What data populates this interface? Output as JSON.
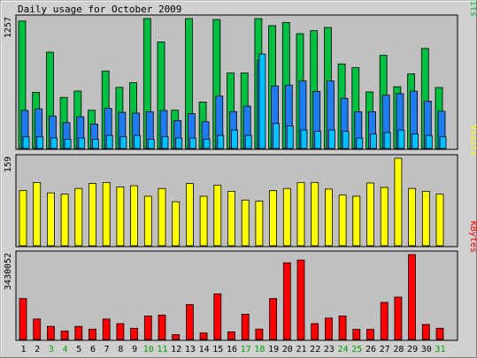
{
  "chart_data": {
    "type": "bar",
    "title": "Daily usage for October 2009",
    "categories": [
      "1",
      "2",
      "3",
      "4",
      "5",
      "6",
      "7",
      "8",
      "9",
      "10",
      "11",
      "12",
      "13",
      "14",
      "15",
      "16",
      "17",
      "18",
      "19",
      "20",
      "21",
      "22",
      "23",
      "24",
      "25",
      "26",
      "27",
      "28",
      "29",
      "30",
      "31"
    ],
    "weekend_days": [
      "3",
      "4",
      "10",
      "11",
      "17",
      "18",
      "24",
      "25",
      "31"
    ],
    "colors": {
      "hits": "#00c040",
      "files": "#1e7cf0",
      "pages": "#00c0ff",
      "visits": "#ffff00",
      "kbytes": "#ff0000",
      "weekday_label": "#000000",
      "weekend_label": "#00a000",
      "panel_bg": "#c0c0c0",
      "frame_bg": "#d0d0d0"
    },
    "panels": [
      {
        "name": "hits-files-pages",
        "ymax_label": "1257",
        "ymax": 1257,
        "legend": [
          {
            "text": "Pages",
            "color": "#00c0ff"
          },
          {
            "text": "/",
            "color": "#000000"
          },
          {
            "text": "Files",
            "color": "#1e7cf0"
          },
          {
            "text": "/",
            "color": "#000000"
          },
          {
            "text": "Hits",
            "color": "#00c040"
          }
        ],
        "series": [
          {
            "name": "Hits",
            "color": "#00c040",
            "values": [
              1233,
              544,
              932,
              494,
              556,
              370,
              750,
              592,
              638,
              1257,
              1031,
              370,
              1257,
              450,
              1248,
              730,
              730,
              1257,
              1188,
              1219,
              1111,
              1140,
              1171,
              818,
              782,
              547,
              901,
              598,
              722,
              968,
              590
            ]
          },
          {
            "name": "Files",
            "color": "#1e7cf0",
            "values": [
              368,
              383,
              314,
              250,
              307,
              236,
              388,
              350,
              343,
              356,
              368,
              270,
              337,
              259,
              508,
              357,
              410,
              854,
              605,
              613,
              653,
              552,
              653,
              485,
              356,
              356,
              516,
              531,
              555,
              458,
              360
            ]
          },
          {
            "name": "Pages",
            "color": "#00c0ff",
            "values": [
              114,
              114,
              102,
              90,
              102,
              90,
              127,
              114,
              127,
              90,
              114,
              102,
              102,
              90,
              127,
              179,
              127,
              914,
              242,
              218,
              179,
              166,
              179,
              166,
              102,
              139,
              154,
              179,
              139,
              127,
              114
            ]
          }
        ]
      },
      {
        "name": "visits",
        "ymax_label": "159",
        "ymax": 159,
        "legend": [
          {
            "text": "Visits",
            "color": "#ffff00"
          }
        ],
        "series": [
          {
            "name": "Visits",
            "color": "#ffff00",
            "values": [
              100,
              115,
              96,
              94,
              104,
              113,
              115,
              107,
              109,
              90,
              104,
              80,
              113,
              90,
              110,
              99,
              83,
              81,
              100,
              104,
              115,
              115,
              103,
              92,
              90,
              114,
              106,
              159,
              104,
              99,
              94
            ]
          }
        ]
      },
      {
        "name": "kbytes",
        "ymax_label": "3430052",
        "ymax": 3430052,
        "legend": [
          {
            "text": "KBytes",
            "color": "#ff0000"
          }
        ],
        "series": [
          {
            "name": "KBytes",
            "color": "#ff0000",
            "values": [
              1653478,
              824847,
              528304,
              342945,
              528304,
              417089,
              824847,
              639520,
              454036,
              949021,
              986106,
              194580,
              1406315,
              260542,
              1838962,
              306029,
              1023191,
              417089,
              1653478,
              3096288,
              3207504,
              639520,
              865793,
              949021,
              406315,
              406315,
              1498542,
              1715269,
              3430052,
              603154,
              454036
            ]
          }
        ]
      }
    ]
  }
}
